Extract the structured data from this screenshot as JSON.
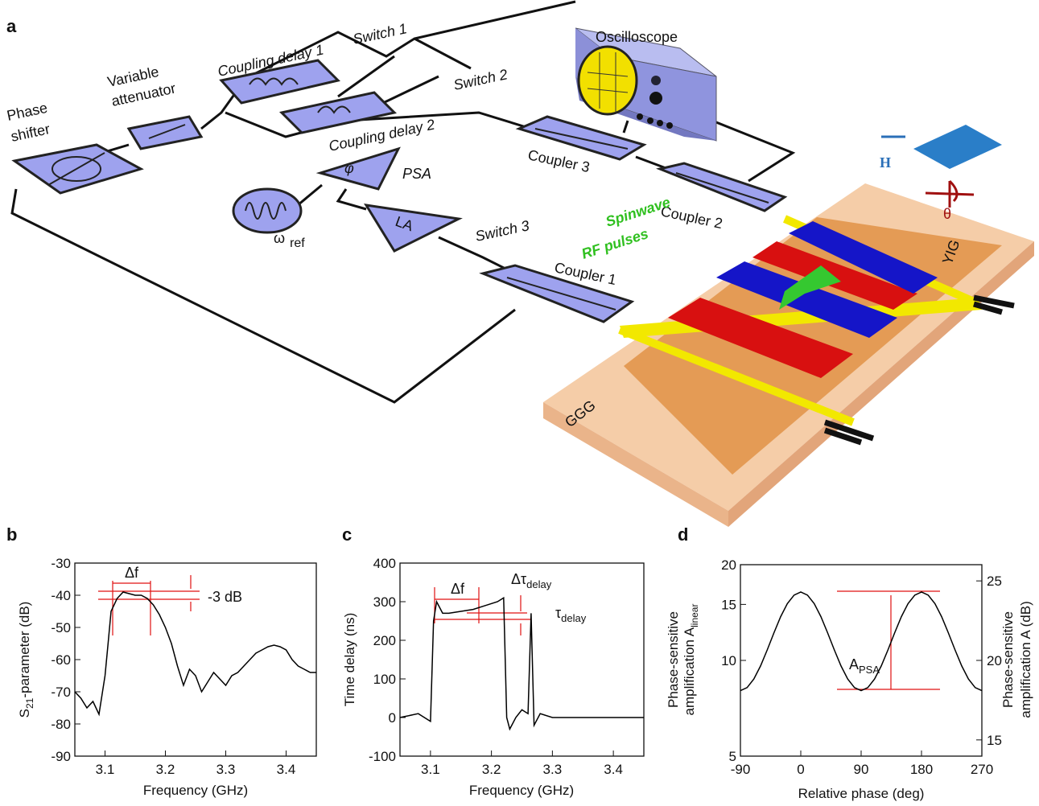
{
  "figure_label": "a",
  "diagram": {
    "oscilloscope": "Oscilloscope",
    "switch_1": "Switch 1",
    "switch_2": "Switch 2",
    "switch_3": "Switch 3",
    "coupling_delay_1": "Coupling delay 1",
    "coupling_delay_2": "Coupling delay 2",
    "variable_attenuator": [
      "Variable",
      "attenuator"
    ],
    "phase_shifter": [
      "Phase",
      "shifter"
    ],
    "psa": "PSA",
    "psa_symbol": "φ",
    "la": "LA",
    "reference": [
      "ω",
      "ref"
    ],
    "coupler_3": "Coupler 3",
    "coupler_2": "Coupler 2",
    "coupler_1": "Coupler 1",
    "spinwave": [
      "Spinwave",
      "RF pulses"
    ],
    "yig": "YIG",
    "ggg": "GGG",
    "field": "H",
    "angle": "θ"
  },
  "chart_data": [
    {
      "type": "line",
      "label": "b",
      "xlabel": "Frequency (GHz)",
      "ylabel": [
        "S",
        "21",
        "-parameter (dB)"
      ],
      "xlim": [
        3.05,
        3.45
      ],
      "xticks": [
        3.1,
        3.2,
        3.3,
        3.4
      ],
      "ylim": [
        -90,
        -30
      ],
      "yticks": [
        -90,
        -80,
        -70,
        -60,
        -50,
        -40,
        -30
      ],
      "annotations": [
        "Δf",
        "-3 dB"
      ],
      "x": [
        3.05,
        3.06,
        3.07,
        3.08,
        3.09,
        3.1,
        3.105,
        3.11,
        3.12,
        3.13,
        3.14,
        3.15,
        3.16,
        3.17,
        3.18,
        3.19,
        3.2,
        3.21,
        3.22,
        3.23,
        3.24,
        3.25,
        3.26,
        3.27,
        3.28,
        3.29,
        3.3,
        3.31,
        3.32,
        3.33,
        3.34,
        3.35,
        3.36,
        3.37,
        3.38,
        3.39,
        3.4,
        3.41,
        3.42,
        3.43,
        3.44,
        3.45
      ],
      "series": [
        {
          "color": "#000000",
          "values": [
            -70,
            -72,
            -75,
            -73,
            -77,
            -65,
            -55,
            -45,
            -41,
            -39,
            -39.5,
            -40,
            -40,
            -41,
            -43,
            -46,
            -50,
            -55,
            -62,
            -68,
            -63,
            -65,
            -70,
            -67,
            -64,
            -66,
            -68,
            -65,
            -64,
            -62,
            -60,
            -58,
            -57,
            -56,
            -55.5,
            -56,
            -57,
            -60,
            -62,
            -63,
            -64,
            -64
          ]
        }
      ]
    },
    {
      "type": "line",
      "label": "c",
      "xlabel": "Frequency (GHz)",
      "ylabel": [
        "Time delay (ns)"
      ],
      "xlim": [
        3.05,
        3.45
      ],
      "xticks": [
        3.1,
        3.2,
        3.3,
        3.4
      ],
      "ylim": [
        -100,
        400
      ],
      "yticks": [
        -100,
        0,
        100,
        200,
        300,
        400
      ],
      "annotations": [
        "Δf",
        [
          "Δτ",
          "delay"
        ],
        [
          "τ",
          "delay"
        ]
      ],
      "x": [
        3.05,
        3.08,
        3.1,
        3.105,
        3.11,
        3.12,
        3.13,
        3.15,
        3.17,
        3.19,
        3.21,
        3.22,
        3.225,
        3.23,
        3.24,
        3.25,
        3.26,
        3.265,
        3.27,
        3.28,
        3.3,
        3.35,
        3.4,
        3.45
      ],
      "series": [
        {
          "color": "#000000",
          "values": [
            0,
            10,
            -10,
            250,
            300,
            270,
            270,
            275,
            280,
            290,
            300,
            310,
            0,
            -30,
            0,
            20,
            10,
            270,
            -20,
            10,
            0,
            0,
            0,
            0
          ]
        }
      ]
    },
    {
      "type": "line",
      "label": "d",
      "xlabel": "Relative phase (deg)",
      "ylabel": [
        "Phase-sensitive",
        "amplification A",
        "linear"
      ],
      "y2label": [
        "Phase-sensitive",
        "amplification A (dB)"
      ],
      "xlim": [
        -90,
        270
      ],
      "xticks": [
        -90,
        0,
        90,
        180,
        270
      ],
      "ylim": [
        5,
        20
      ],
      "yticks": [
        5,
        10,
        15,
        20
      ],
      "log_scale": true,
      "y2lim": [
        13.98,
        26.02
      ],
      "y2ticks": [
        15,
        20,
        25
      ],
      "annotations": [
        [
          "A",
          "PSA"
        ]
      ],
      "x": [
        -90,
        -80,
        -70,
        -60,
        -50,
        -40,
        -30,
        -20,
        -10,
        0,
        10,
        20,
        30,
        40,
        50,
        60,
        70,
        80,
        90,
        100,
        110,
        120,
        130,
        140,
        150,
        160,
        170,
        180,
        190,
        200,
        210,
        220,
        230,
        240,
        250,
        260,
        270
      ],
      "series": [
        {
          "color": "#000000",
          "axis": "y2",
          "values": [
            18.1,
            18.29,
            18.83,
            19.65,
            20.66,
            21.74,
            22.75,
            23.57,
            24.11,
            24.3,
            24.11,
            23.57,
            22.75,
            21.74,
            20.66,
            19.65,
            18.83,
            18.29,
            18.1,
            18.29,
            18.83,
            19.65,
            20.66,
            21.74,
            22.75,
            23.57,
            24.11,
            24.3,
            24.11,
            23.57,
            22.75,
            21.74,
            20.66,
            19.65,
            18.83,
            18.29,
            18.1
          ]
        }
      ]
    }
  ]
}
